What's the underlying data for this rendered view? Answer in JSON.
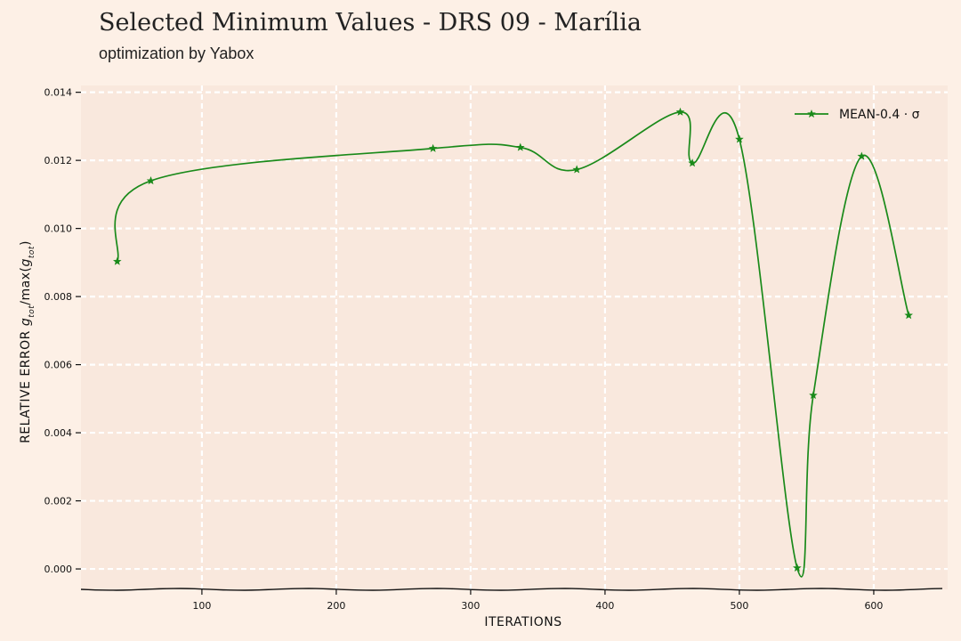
{
  "chart_data": {
    "type": "line",
    "title": "Selected Minimum Values - DRS 09 - Marília",
    "subtitle": "optimization by Yabox",
    "xlabel": "ITERATIONS",
    "ylabel": "RELATIVE ERROR g_tot/max(g_tot)",
    "ylabel_prefix": "RELATIVE ERROR",
    "xlim": [
      10,
      655
    ],
    "ylim": [
      -0.0006,
      0.0142
    ],
    "xticks": [
      100,
      200,
      300,
      400,
      500,
      600
    ],
    "xtick_labels": [
      "100",
      "200",
      "300",
      "400",
      "500",
      "600"
    ],
    "yticks": [
      0.0,
      0.002,
      0.004,
      0.006,
      0.008,
      0.01,
      0.012,
      0.014
    ],
    "ytick_labels": [
      "0.000",
      "0.002",
      "0.004",
      "0.006",
      "0.008",
      "0.010",
      "0.012",
      "0.014"
    ],
    "grid": true,
    "legend_position": "top-right",
    "series": [
      {
        "name": "MEAN-0.4 · σ",
        "color": "#1a8a1a",
        "marker": "star",
        "x": [
          37,
          62,
          272,
          337,
          379,
          456,
          465,
          500,
          543,
          555,
          591,
          626
        ],
        "y": [
          0.00903,
          0.0114,
          0.01235,
          0.01238,
          0.01173,
          0.01342,
          0.01192,
          0.01262,
          3e-05,
          0.0051,
          0.01212,
          0.00745
        ]
      }
    ]
  },
  "colors": {
    "background": "#fdf0e6",
    "plot_area": "#f9e8dd",
    "grid": "#ffffff",
    "line": "#1a8a1a"
  }
}
